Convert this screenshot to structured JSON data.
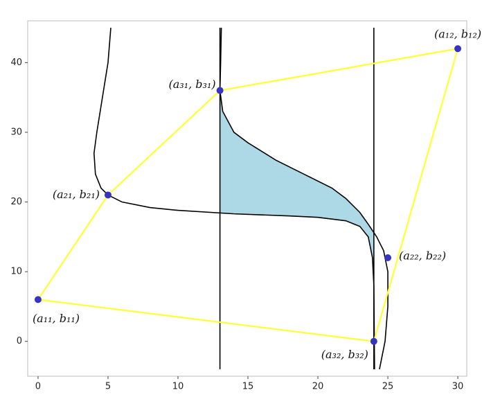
{
  "chart_data": {
    "type": "scatter",
    "xlim": [
      -0.74,
      30.64
    ],
    "ylim": [
      -5,
      46
    ],
    "xticks": [
      0,
      5,
      10,
      15,
      20,
      25,
      30
    ],
    "yticks": [
      0,
      10,
      20,
      30,
      40
    ],
    "points": {
      "color": "#3535c0",
      "x": [
        0,
        30,
        5,
        25,
        13,
        24
      ],
      "y": [
        6,
        42,
        21,
        12,
        36,
        0
      ],
      "labels": [
        "(a₁₁, b₁₁)",
        "(a₁₂, b₁₂)",
        "(a₂₁, b₂₁)",
        "(a₂₂, b₂₂)",
        "(a₃₁, b₃₁)",
        "(a₃₂, b₃₂)"
      ]
    },
    "polygon": {
      "color": "#ffff33",
      "x": [
        0,
        5,
        13,
        30,
        24,
        0
      ],
      "y": [
        6,
        21,
        36,
        42,
        0,
        6
      ]
    },
    "vlines": {
      "color": "#000000",
      "x": [
        13,
        24
      ],
      "y": [
        -4,
        45
      ]
    },
    "curves": [
      {
        "color": "#000000",
        "x": [
          5.2,
          5.0,
          4.6,
          4.2,
          4.0,
          4.1,
          4.5,
          5,
          6,
          8,
          10,
          14,
          18,
          20,
          22,
          23,
          23.6,
          23.9,
          24,
          24.05
        ],
        "y": [
          45,
          40,
          35,
          30,
          27,
          24,
          22,
          21,
          20,
          19.2,
          18.8,
          18.3,
          18,
          17.8,
          17.3,
          16.5,
          15,
          12,
          8,
          -4
        ]
      },
      {
        "color": "#000000",
        "x": [
          13.1,
          13.05,
          13,
          13.2,
          14,
          15,
          17,
          19,
          21,
          22,
          23,
          23.6,
          24.2,
          24.7,
          25,
          25,
          24.8,
          24.4
        ],
        "y": [
          45,
          40,
          36,
          33,
          30,
          28.5,
          26,
          24,
          22,
          20.5,
          18.5,
          16.8,
          15,
          13,
          10,
          5,
          0,
          -4
        ]
      }
    ],
    "shaded": {
      "color": "#add8e6",
      "x": [
        13,
        13.2,
        14,
        15,
        17,
        19,
        21,
        22,
        23,
        23.6,
        24,
        24,
        23.9,
        23.6,
        23,
        22,
        20,
        18,
        14,
        13
      ],
      "y": [
        36,
        33,
        30,
        28.5,
        26,
        24,
        22,
        20.5,
        18.5,
        16.8,
        15.6,
        8,
        12,
        15,
        16.5,
        17.3,
        17.8,
        18,
        18.3,
        18.4
      ]
    }
  }
}
